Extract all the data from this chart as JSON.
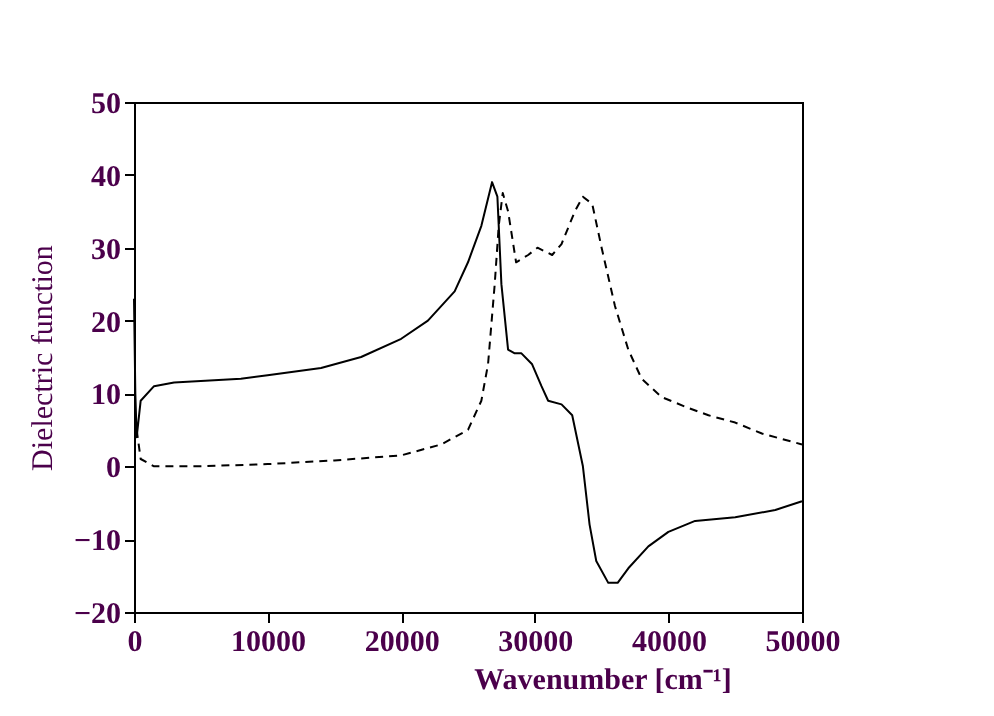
{
  "chart_data": {
    "type": "line",
    "xlabel": "Wavenumber [cm⁻¹]",
    "ylabel": "Dielectric function",
    "xlim": [
      0,
      50000
    ],
    "xticks": [
      0,
      10000,
      20000,
      30000,
      40000,
      50000
    ],
    "ylim": [
      -20,
      50
    ],
    "yticks": [
      -20,
      -10,
      0,
      10,
      20,
      30,
      40,
      50
    ],
    "grid": false,
    "marker": "none",
    "series": [
      {
        "color": "#000000",
        "line_style": "solid",
        "x": [
          0,
          100,
          200,
          500,
          1500,
          3000,
          8000,
          10000,
          14000,
          17000,
          20000,
          22000,
          24000,
          25000,
          26000,
          26800,
          27200,
          27500,
          28000,
          28500,
          29000,
          29800,
          30500,
          31000,
          32000,
          32800,
          33600,
          34100,
          34600,
          35500,
          36200,
          37000,
          38500,
          40000,
          42000,
          45000,
          48000,
          50000
        ],
        "values": [
          23,
          10,
          4,
          9,
          11,
          11.5,
          12,
          12.5,
          13.5,
          15,
          17.5,
          20,
          24,
          28,
          33,
          39,
          37,
          25,
          16,
          15.5,
          15.5,
          14,
          11,
          9,
          8.5,
          7,
          0,
          -8,
          -13,
          -16,
          -16,
          -14,
          -11,
          -9,
          -7.5,
          -7,
          -6,
          -4.8
        ]
      },
      {
        "color": "#000000",
        "line_style": "dashed",
        "x": [
          200,
          500,
          1500,
          5000,
          10000,
          15000,
          20000,
          23000,
          25000,
          26000,
          26500,
          27000,
          27300,
          27600,
          28000,
          28600,
          29500,
          30200,
          31300,
          32000,
          33000,
          33600,
          34300,
          35000,
          36000,
          37000,
          38000,
          39500,
          41500,
          43000,
          45000,
          47000,
          50000
        ],
        "values": [
          5,
          1,
          0,
          0,
          0.3,
          0.8,
          1.5,
          3,
          5,
          9,
          14,
          25,
          33,
          37.5,
          35,
          28,
          29,
          30,
          29,
          30.5,
          35,
          37,
          36,
          30,
          22,
          16,
          12,
          9.5,
          8,
          7,
          6,
          4.5,
          3
        ]
      }
    ]
  }
}
